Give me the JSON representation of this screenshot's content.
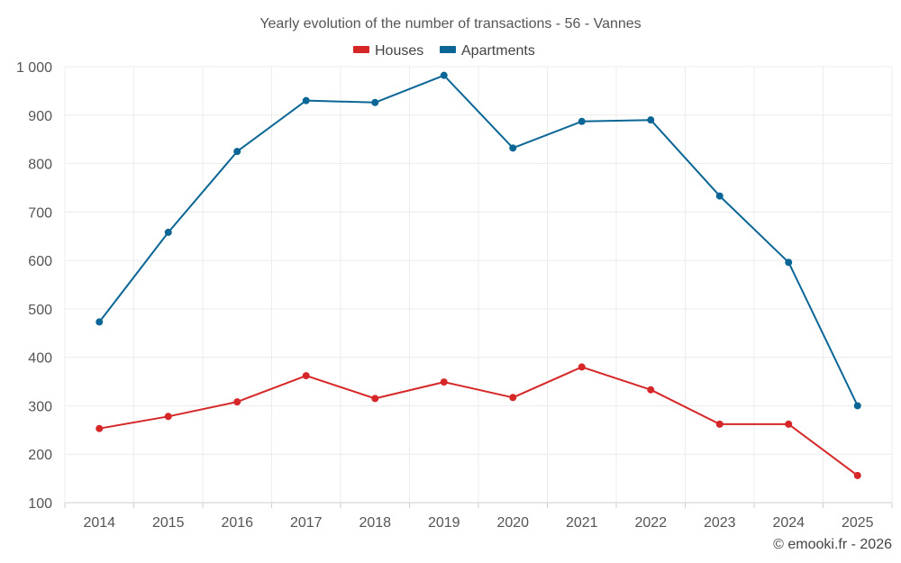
{
  "chart_data": {
    "type": "line",
    "title": "Yearly evolution of the number of transactions - 56 - Vannes",
    "categories": [
      "2014",
      "2015",
      "2016",
      "2017",
      "2018",
      "2019",
      "2020",
      "2021",
      "2022",
      "2023",
      "2024",
      "2025"
    ],
    "series": [
      {
        "name": "Houses",
        "color": "#d62728",
        "values": [
          253,
          278,
          308,
          362,
          315,
          349,
          317,
          380,
          333,
          262,
          262,
          156
        ]
      },
      {
        "name": "Apartments",
        "color": "#0b6696",
        "values": [
          473,
          658,
          825,
          930,
          926,
          982,
          832,
          887,
          890,
          733,
          596,
          300
        ]
      }
    ],
    "ylim": [
      100,
      1000
    ],
    "yticks": [
      100,
      200,
      300,
      400,
      500,
      600,
      700,
      800,
      900,
      1000
    ],
    "ytick_labels": [
      "100",
      "200",
      "300",
      "400",
      "500",
      "600",
      "700",
      "800",
      "900",
      "1 000"
    ],
    "grid": true,
    "legend": "top-center",
    "xlabel": "",
    "ylabel": ""
  },
  "credit": "© emooki.fr - 2026"
}
